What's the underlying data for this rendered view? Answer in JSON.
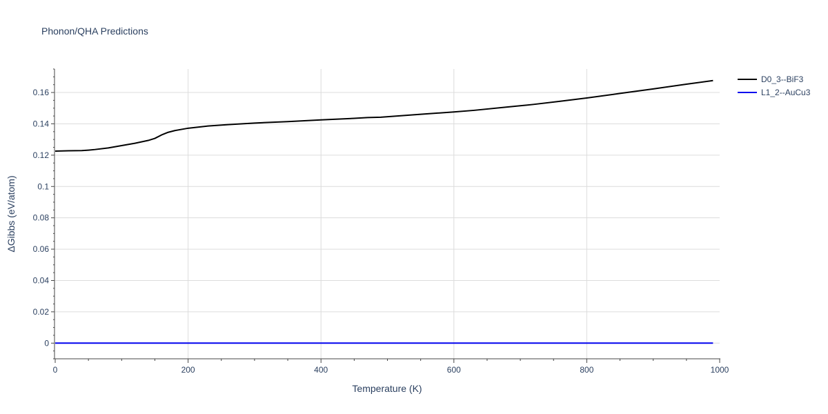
{
  "chart_data": {
    "type": "line",
    "title": "Phonon/QHA Predictions",
    "xlabel": "Temperature (K)",
    "ylabel": "ΔGibbs (eV/atom)",
    "xlim": [
      0,
      1000
    ],
    "ylim": [
      -0.01,
      0.175
    ],
    "x_ticks": [
      0,
      200,
      400,
      600,
      800,
      1000
    ],
    "x_tick_labels": [
      "0",
      "200",
      "400",
      "600",
      "800",
      "1000"
    ],
    "y_ticks": [
      0,
      0.02,
      0.04,
      0.06,
      0.08,
      0.1,
      0.12,
      0.14,
      0.16
    ],
    "y_tick_labels": [
      "0",
      "0.02",
      "0.04",
      "0.06",
      "0.08",
      "0.1",
      "0.12",
      "0.14",
      "0.16"
    ],
    "grid": true,
    "legend_position": "top-right",
    "series": [
      {
        "name": "D0_3--BiF3",
        "color": "#000000",
        "x": [
          0,
          20,
          40,
          50,
          60,
          80,
          100,
          120,
          140,
          150,
          160,
          170,
          180,
          200,
          230,
          260,
          300,
          350,
          400,
          450,
          470,
          490,
          550,
          600,
          630,
          680,
          720,
          760,
          800,
          850,
          900,
          950,
          990
        ],
        "y": [
          0.1226,
          0.1228,
          0.1229,
          0.1232,
          0.1236,
          0.1246,
          0.1261,
          0.1276,
          0.1294,
          0.1307,
          0.1329,
          0.1346,
          0.1357,
          0.1372,
          0.1386,
          0.1395,
          0.1405,
          0.1414,
          0.1425,
          0.1435,
          0.144,
          0.1442,
          0.1461,
          0.1476,
          0.1486,
          0.1507,
          0.1524,
          0.1544,
          0.1565,
          0.1594,
          0.1623,
          0.1653,
          0.1676
        ]
      },
      {
        "name": "L1_2--AuCu3",
        "color": "#0000ee",
        "x": [
          0,
          990
        ],
        "y": [
          0,
          0
        ]
      }
    ]
  }
}
